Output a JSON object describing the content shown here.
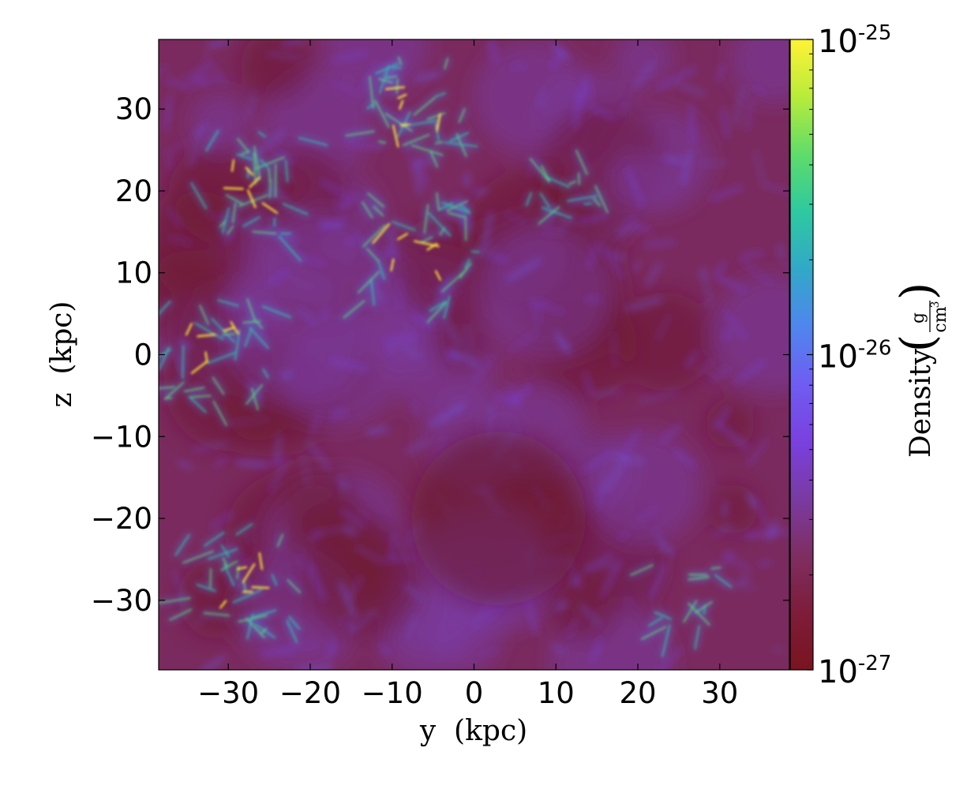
{
  "chart_data": {
    "type": "heatmap",
    "title": "",
    "xlabel": "y  (kpc)",
    "ylabel": "z  (kpc)",
    "xlim": [
      -38.5,
      38.5
    ],
    "ylim": [
      -38.5,
      38.5
    ],
    "x_ticks": [
      -30,
      -20,
      -10,
      0,
      10,
      20,
      30
    ],
    "y_ticks": [
      -30,
      -20,
      -10,
      0,
      10,
      20,
      30
    ],
    "x_tick_labels": [
      "−30",
      "−20",
      "−10",
      "0",
      "10",
      "20",
      "30"
    ],
    "y_tick_labels": [
      "−30",
      "−20",
      "−10",
      "0",
      "10",
      "20",
      "30"
    ],
    "grid": false,
    "colorbar": {
      "label": "Density",
      "unit_numerator": "g",
      "unit_denominator": "cm",
      "unit_denominator_exponent": "3",
      "scale": "log",
      "range": [
        1e-27,
        1e-25
      ],
      "ticks": [
        {
          "value": 1e-25,
          "base": "10",
          "exponent": "-25"
        },
        {
          "value": 1e-26,
          "base": "10",
          "exponent": "-26"
        },
        {
          "value": 1e-27,
          "base": "10",
          "exponent": "-27"
        }
      ],
      "colormap": [
        "#7a1420",
        "#7e1c3a",
        "#7f2e62",
        "#7a3aa3",
        "#7a40e0",
        "#6f5df2",
        "#4f86ee",
        "#32a8c8",
        "#2ec9a0",
        "#5fdc6a",
        "#b8ec3a",
        "#fff236"
      ]
    },
    "background_color": "#7a2a5e",
    "density_features": [
      {
        "region": "upper-left cluster",
        "x": -28,
        "z": 21,
        "level": "high"
      },
      {
        "region": "central filament",
        "x": -7,
        "z": 13,
        "level": "high"
      },
      {
        "region": "upper filament",
        "x": -7,
        "z": 30,
        "level": "high"
      },
      {
        "region": "left knot",
        "x": -32,
        "z": 1,
        "level": "high"
      },
      {
        "region": "lower-left cluster",
        "x": -29,
        "z": -27,
        "level": "high"
      },
      {
        "region": "right filament",
        "x": 11,
        "z": 22,
        "level": "medium"
      },
      {
        "region": "lower-right clump",
        "x": 26,
        "z": -29,
        "level": "medium"
      },
      {
        "region": "void",
        "x": 3,
        "z": -20,
        "level": "low"
      }
    ]
  }
}
